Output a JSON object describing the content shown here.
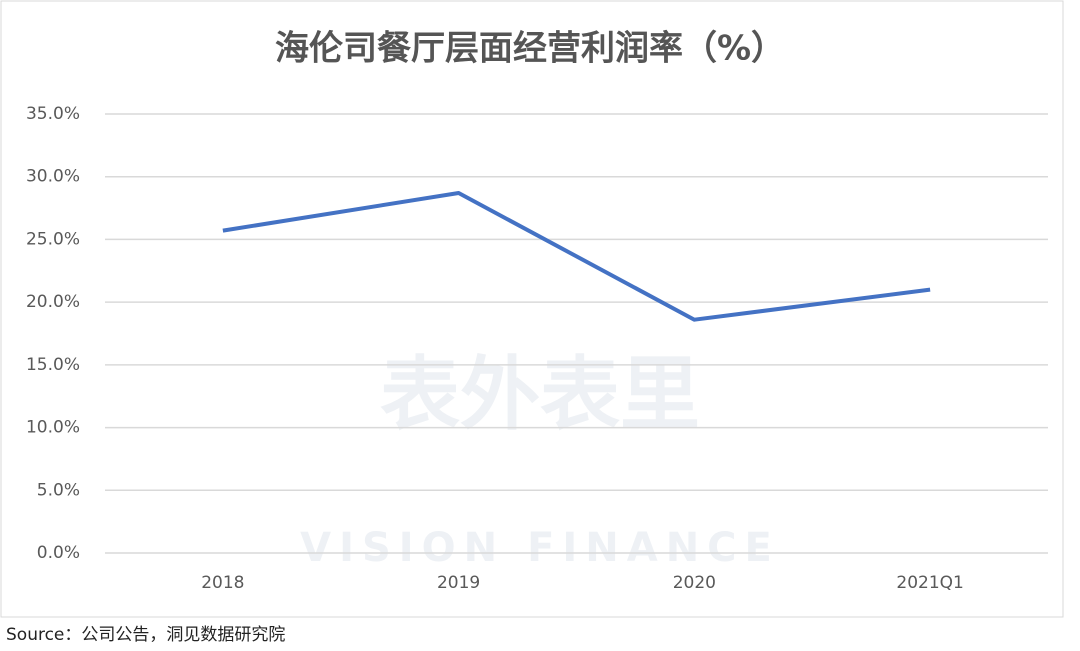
{
  "chart_data": {
    "type": "line",
    "title": "海伦司餐厅层面经营利润率（%）",
    "categories": [
      "2018",
      "2019",
      "2020",
      "2021Q1"
    ],
    "series": [
      {
        "name": "海伦司餐厅层面经营利润率",
        "color": "#4472c4",
        "values": [
          25.7,
          28.7,
          18.6,
          21.0
        ]
      }
    ],
    "ylim": [
      0,
      35
    ],
    "yticks": [
      {
        "value": 0,
        "label": "0.0%"
      },
      {
        "value": 5,
        "label": "5.0%"
      },
      {
        "value": 10,
        "label": "10.0%"
      },
      {
        "value": 15,
        "label": "15.0%"
      },
      {
        "value": 20,
        "label": "20.0%"
      },
      {
        "value": 25,
        "label": "25.0%"
      },
      {
        "value": 30,
        "label": "30.0%"
      },
      {
        "value": 35,
        "label": "35.0%"
      }
    ],
    "grid": true
  },
  "watermark": {
    "title": "表外表里",
    "subtitle": "VISION FINANCE"
  },
  "source": "Source：公司公告，洞见数据研究院"
}
